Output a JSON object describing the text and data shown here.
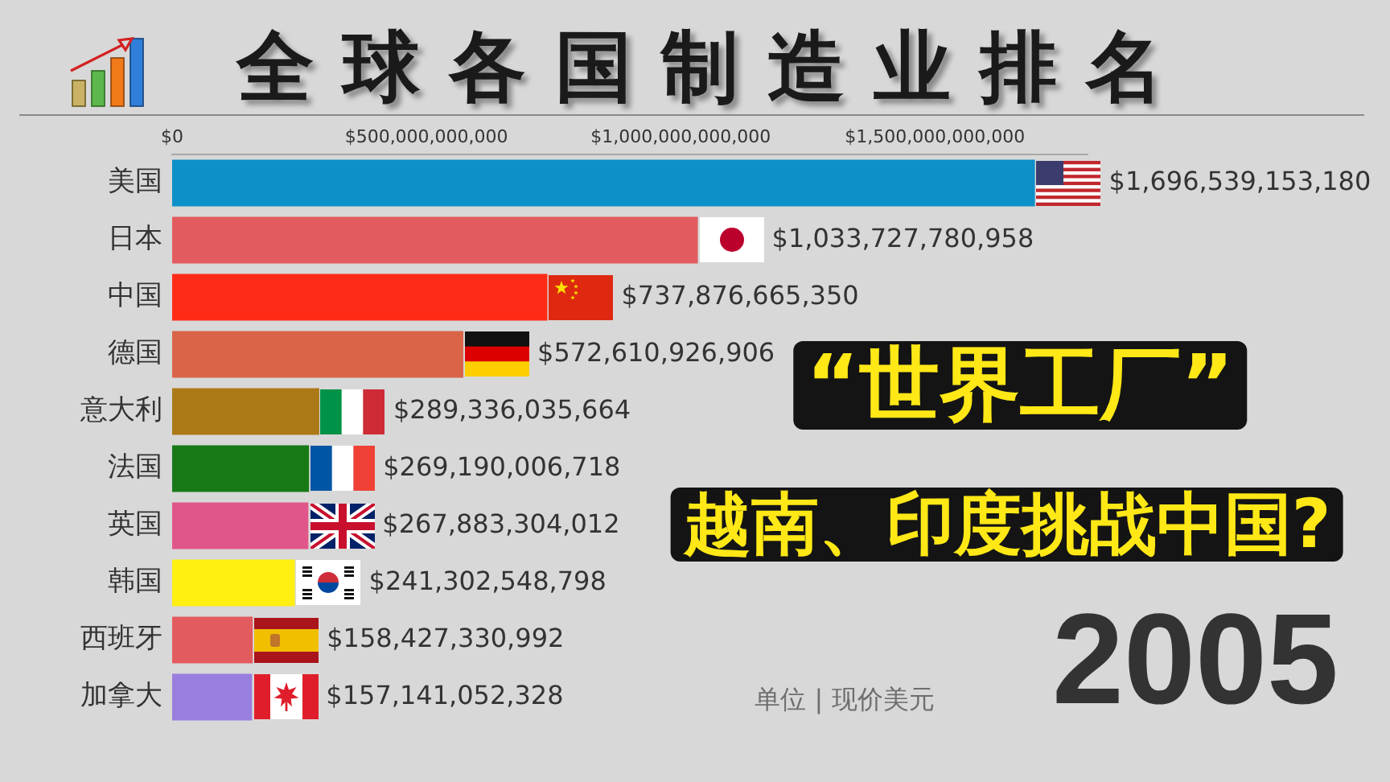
{
  "chart_data": {
    "type": "bar",
    "orientation": "horizontal",
    "title": "全球各国制造业排名",
    "categories": [
      "美国",
      "日本",
      "中国",
      "德国",
      "意大利",
      "法国",
      "英国",
      "韩国",
      "西班牙",
      "加拿大"
    ],
    "values": [
      1696539153180,
      1033727780958,
      737876665350,
      572610926906,
      289336035664,
      269190006718,
      267883304012,
      241302548798,
      158427330992,
      157141052328
    ],
    "colors": [
      "#0d8fc8",
      "#e25c5f",
      "#ff2b16",
      "#da6448",
      "#ab7a17",
      "#177a17",
      "#e1568a",
      "#fff012",
      "#e25c5f",
      "#9a7edf"
    ],
    "value_labels": [
      "$1,696,539,153,180",
      "$1,033,727,780,958",
      "$737,876,665,350",
      "$572,610,926,906",
      "$289,336,035,664",
      "$269,190,006,718",
      "$267,883,304,012",
      "$241,302,548,798",
      "$158,427,330,992",
      "$157,141,052,328"
    ],
    "xlim": [
      0,
      1800000000000
    ],
    "xticks": [
      {
        "value": 0,
        "label": "$0"
      },
      {
        "value": 500000000000,
        "label": "$500,000,000,000"
      },
      {
        "value": 1000000000000,
        "label": "$1,000,000,000,000"
      },
      {
        "value": 1500000000000,
        "label": "$1,500,000,000,000"
      }
    ],
    "annotations": [
      "“世界工厂”",
      "越南、印度挑战中国?",
      "2005",
      "单位 | 现价美元"
    ]
  }
}
